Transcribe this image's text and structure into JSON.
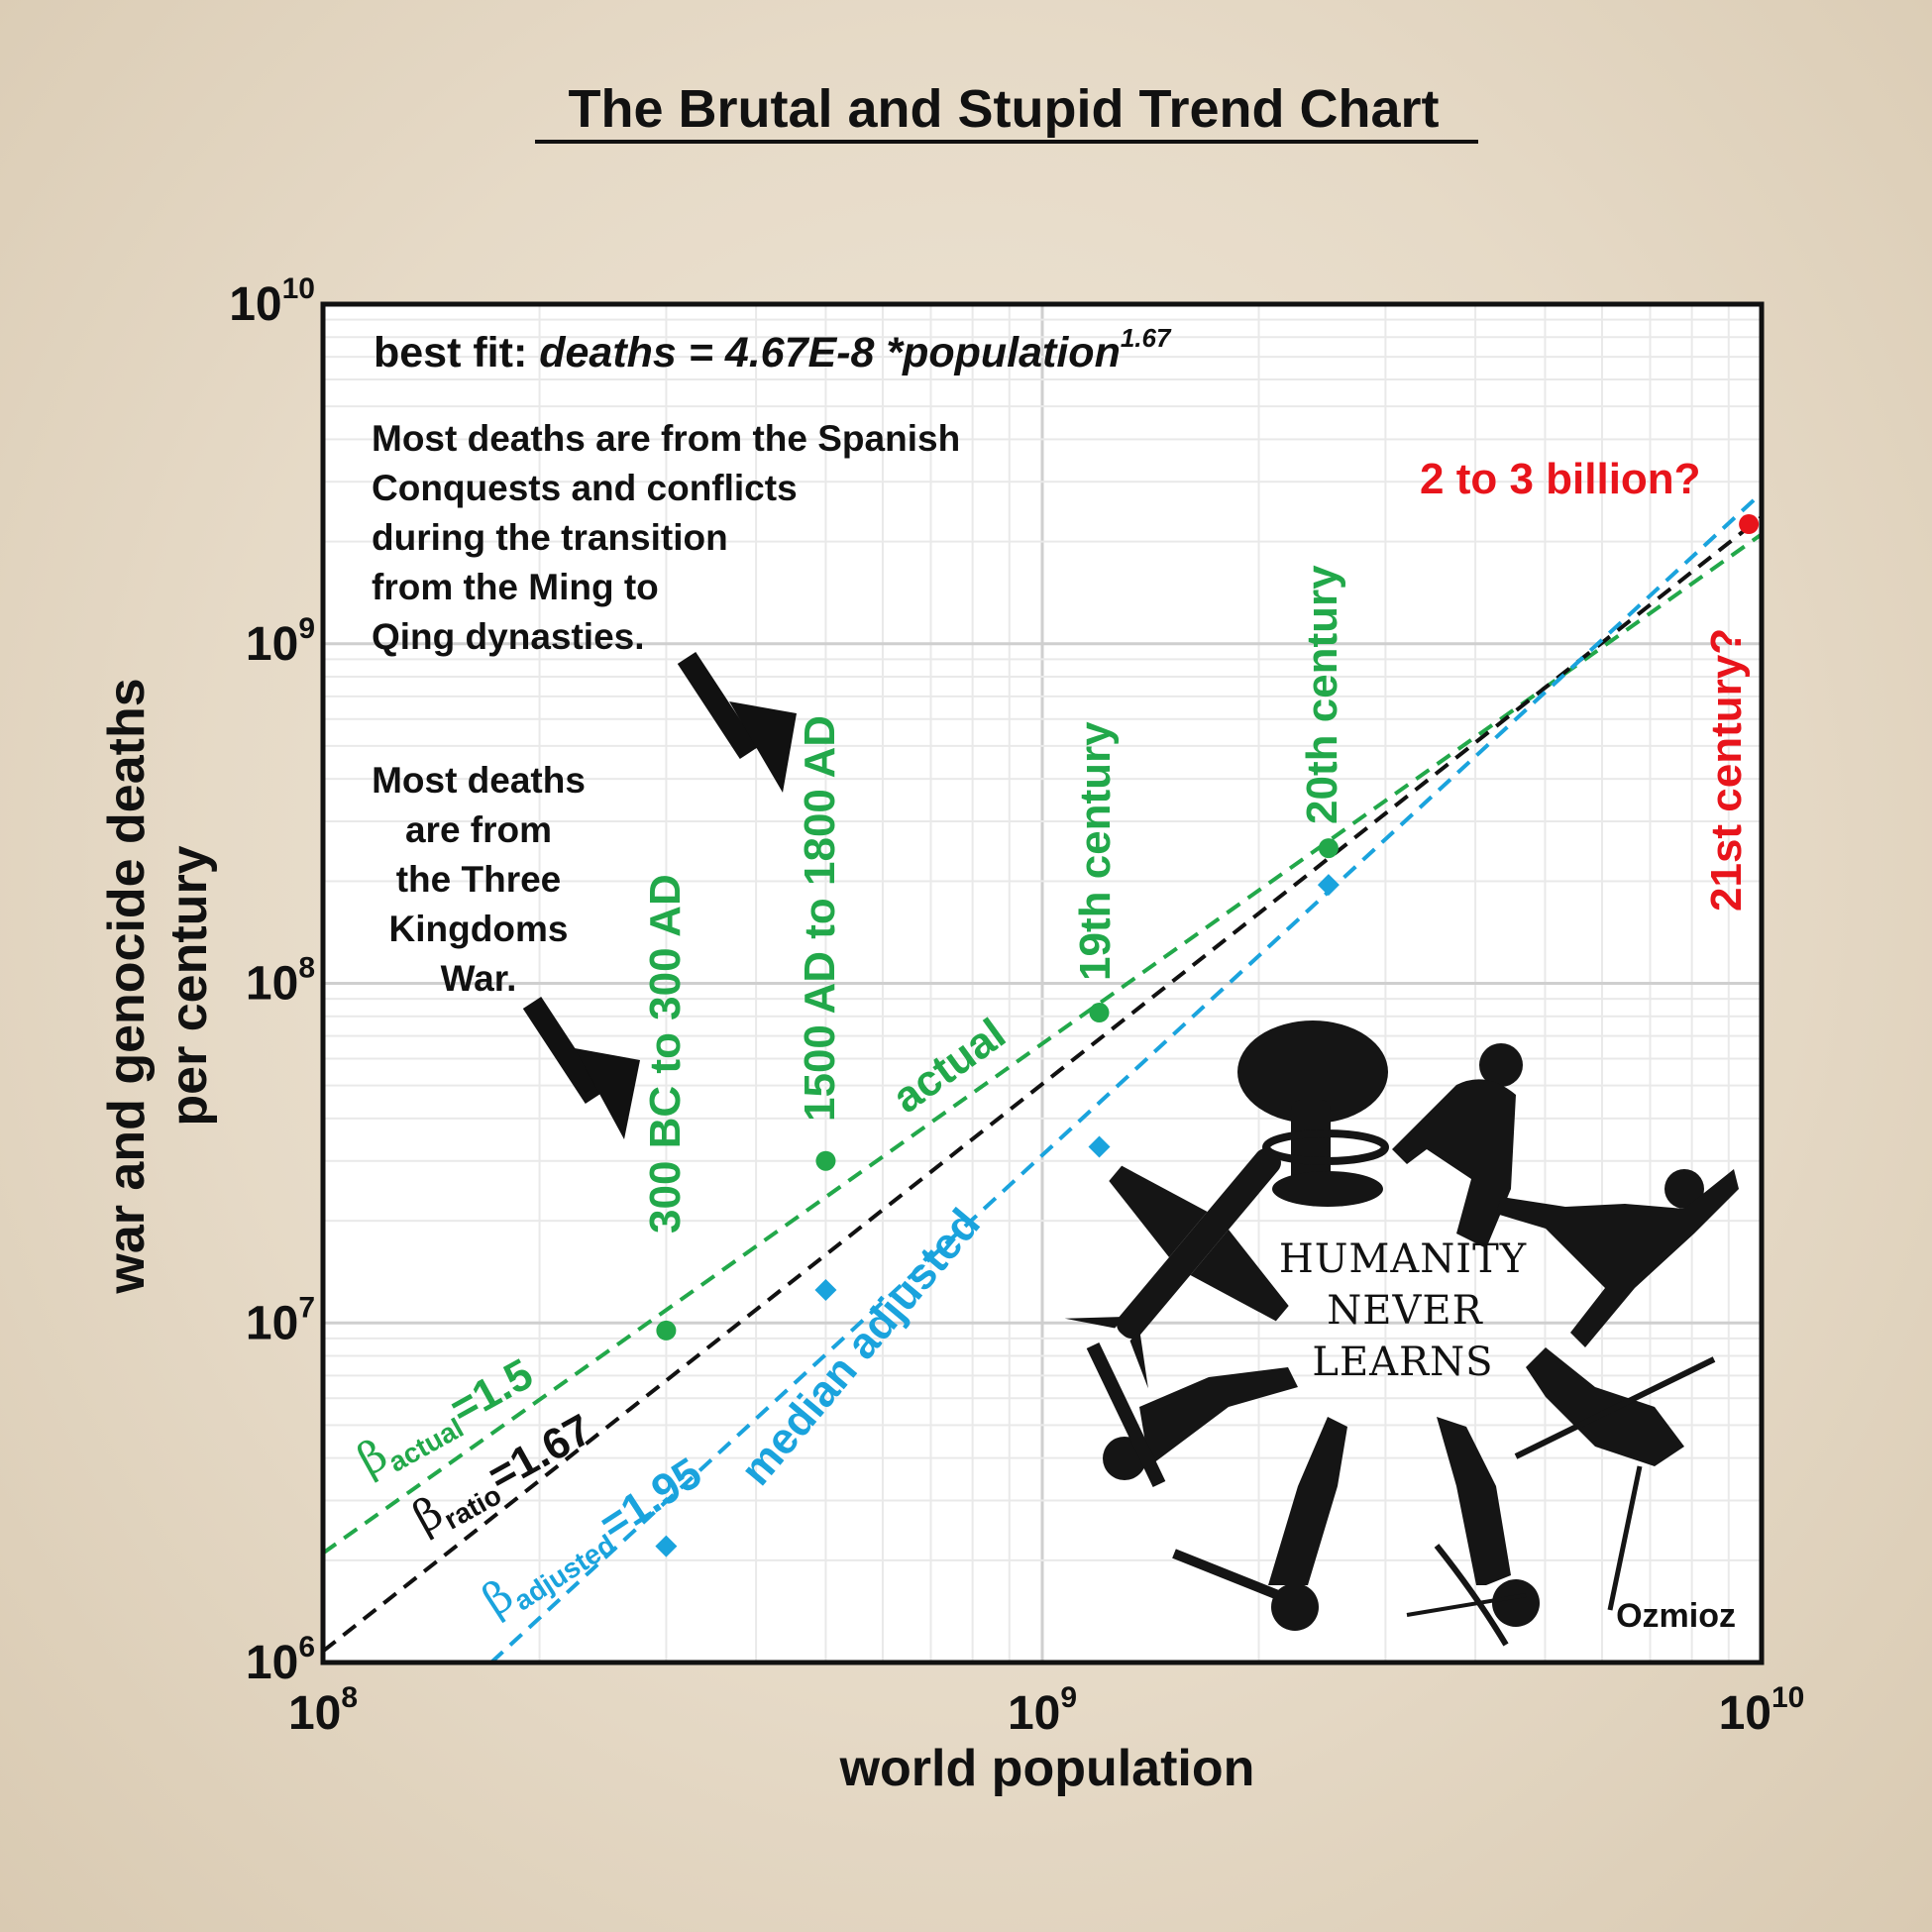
{
  "chart_data": {
    "type": "scatter",
    "title": "The Brutal and Stupid Trend Chart",
    "xlabel": "world population",
    "ylabel_lines": [
      "war and genocide deaths",
      "per century"
    ],
    "x_scale": "log",
    "y_scale": "log",
    "xlim": [
      100000000,
      10000000000
    ],
    "ylim": [
      1000000,
      10000000000
    ],
    "x_ticks": [
      {
        "value": 100000000,
        "base": "10",
        "exp": "8"
      },
      {
        "value": 1000000000,
        "base": "10",
        "exp": "9"
      },
      {
        "value": 10000000000,
        "base": "10",
        "exp": "10"
      }
    ],
    "y_ticks": [
      {
        "value": 1000000,
        "base": "10",
        "exp": "6"
      },
      {
        "value": 10000000,
        "base": "10",
        "exp": "7"
      },
      {
        "value": 100000000,
        "base": "10",
        "exp": "8"
      },
      {
        "value": 1000000000,
        "base": "10",
        "exp": "9"
      },
      {
        "value": 10000000000,
        "base": "10",
        "exp": "10"
      }
    ],
    "grid": true,
    "series": [
      {
        "name": "actual",
        "color": "#22a84a",
        "marker": "circle",
        "points": [
          {
            "x": 300000000,
            "y": 9500000
          },
          {
            "x": 500000000,
            "y": 30000000
          },
          {
            "x": 1200000000,
            "y": 82000000
          },
          {
            "x": 2500000000,
            "y": 250000000
          }
        ]
      },
      {
        "name": "median adjusted",
        "color": "#1aa3dd",
        "marker": "diamond",
        "points": [
          {
            "x": 300000000,
            "y": 2200000
          },
          {
            "x": 500000000,
            "y": 12500000
          },
          {
            "x": 1200000000,
            "y": 33000000
          },
          {
            "x": 2500000000,
            "y": 195000000
          }
        ]
      },
      {
        "name": "21st century?",
        "color": "#e8141b",
        "marker": "circle",
        "points": [
          {
            "x": 9600000000,
            "y": 2250000000
          }
        ]
      }
    ],
    "fit_lines": [
      {
        "name": "actual",
        "color": "#22a84a",
        "beta": 1.5,
        "y_at_1e8": 2100000,
        "beta_sub": "actual",
        "beta_value": "=1.5"
      },
      {
        "name": "ratio",
        "color": "#111111",
        "beta": 1.67,
        "y_at_1e8": 1080000,
        "beta_sub": "ratio",
        "beta_value": "=1.67"
      },
      {
        "name": "adjusted",
        "color": "#1aa3dd",
        "beta": 1.95,
        "y_at_1e8": 350000,
        "beta_sub": "adjusted",
        "beta_value": "=1.95"
      }
    ],
    "point_labels": [
      {
        "text": "300 BC to 300 AD",
        "color": "#22a84a"
      },
      {
        "text": "1500 AD to 1800 AD",
        "color": "#22a84a"
      },
      {
        "text": "19th century",
        "color": "#22a84a"
      },
      {
        "text": "20th century",
        "color": "#22a84a"
      },
      {
        "text": "21st century?",
        "color": "#e8141b"
      },
      {
        "text": "2 to 3 billion?",
        "color": "#e8141b"
      }
    ],
    "line_labels": {
      "actual": "actual",
      "median_adjusted": "median adjusted"
    },
    "annotations": {
      "best_fit_prefix": "best fit: ",
      "best_fit_formula": "deaths = 4.67E-8 *population",
      "best_fit_exp": "1.67",
      "beta_symbol": "β",
      "note_spanish": [
        "Most deaths are from the Spanish",
        "Conquests and conflicts",
        "during the transition",
        "from the Ming to",
        "Qing dynasties."
      ],
      "note_three_kingdoms": [
        "Most deaths",
        "are from",
        "the Three",
        "Kingdoms",
        "War."
      ]
    },
    "logo_lines": [
      "HUMANITY",
      "NEVER",
      "LEARNS"
    ],
    "credit": "Ozmioz"
  }
}
